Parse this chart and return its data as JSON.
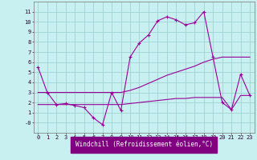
{
  "xlabel": "Windchill (Refroidissement éolien,°C)",
  "background_color": "#c8f0f0",
  "line_color": "#990099",
  "grid_color": "#99cccc",
  "x_values": [
    0,
    1,
    2,
    3,
    4,
    5,
    6,
    7,
    8,
    9,
    10,
    11,
    12,
    13,
    14,
    15,
    16,
    17,
    18,
    19,
    20,
    21,
    22,
    23
  ],
  "main_line": [
    5.5,
    3.0,
    1.8,
    1.9,
    1.7,
    1.5,
    0.5,
    -0.2,
    3.0,
    1.2,
    6.5,
    7.9,
    8.7,
    10.1,
    10.5,
    10.2,
    9.7,
    9.9,
    11.0,
    6.5,
    2.0,
    1.3,
    4.8,
    2.7
  ],
  "flat_line1": [
    3.0,
    3.0,
    3.0,
    3.0,
    3.0,
    3.0,
    3.0,
    3.0,
    3.0,
    3.0,
    3.2,
    3.5,
    3.9,
    4.3,
    4.7,
    5.0,
    5.3,
    5.6,
    6.0,
    6.3,
    6.5,
    6.5,
    6.5,
    6.5
  ],
  "flat_line2": [
    1.8,
    1.8,
    1.8,
    1.8,
    1.8,
    1.8,
    1.8,
    1.8,
    1.8,
    1.8,
    1.9,
    2.0,
    2.1,
    2.2,
    2.3,
    2.4,
    2.4,
    2.5,
    2.5,
    2.5,
    2.5,
    1.3,
    2.7,
    2.7
  ],
  "ylim": [
    -1,
    12
  ],
  "xlim": [
    -0.5,
    23.5
  ],
  "yticks": [
    0,
    1,
    2,
    3,
    4,
    5,
    6,
    7,
    8,
    9,
    10,
    11
  ],
  "ytick_labels": [
    "-0",
    "1",
    "2",
    "3",
    "4",
    "5",
    "6",
    "7",
    "8",
    "9",
    "10",
    "11"
  ],
  "xticks": [
    0,
    1,
    2,
    3,
    4,
    5,
    6,
    7,
    8,
    9,
    10,
    11,
    12,
    13,
    14,
    15,
    16,
    17,
    18,
    19,
    20,
    21,
    22,
    23
  ],
  "xlabel_bg": "#800080",
  "xlabel_fg": "#ffffff",
  "tick_fontsize": 5,
  "xlabel_fontsize": 5.5,
  "linewidth": 0.8,
  "markersize": 3
}
